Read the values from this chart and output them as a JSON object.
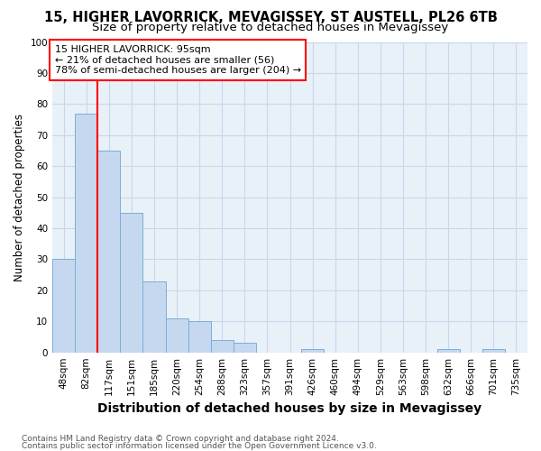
{
  "title": "15, HIGHER LAVORRICK, MEVAGISSEY, ST AUSTELL, PL26 6TB",
  "subtitle": "Size of property relative to detached houses in Mevagissey",
  "xlabel": "Distribution of detached houses by size in Mevagissey",
  "ylabel": "Number of detached properties",
  "footnote1": "Contains HM Land Registry data © Crown copyright and database right 2024.",
  "footnote2": "Contains public sector information licensed under the Open Government Licence v3.0.",
  "categories": [
    "48sqm",
    "82sqm",
    "117sqm",
    "151sqm",
    "185sqm",
    "220sqm",
    "254sqm",
    "288sqm",
    "323sqm",
    "357sqm",
    "391sqm",
    "426sqm",
    "460sqm",
    "494sqm",
    "529sqm",
    "563sqm",
    "598sqm",
    "632sqm",
    "666sqm",
    "701sqm",
    "735sqm"
  ],
  "values": [
    30,
    77,
    65,
    45,
    23,
    11,
    10,
    4,
    3,
    0,
    0,
    1,
    0,
    0,
    0,
    0,
    0,
    1,
    0,
    1,
    0
  ],
  "bar_color": "#c5d8f0",
  "bar_edge_color": "#7bafd4",
  "red_line_x": 1.5,
  "annotation_line1": "15 HIGHER LAVORRICK: 95sqm",
  "annotation_line2": "← 21% of detached houses are smaller (56)",
  "annotation_line3": "78% of semi-detached houses are larger (204) →",
  "annotation_box_color": "white",
  "annotation_box_edge_color": "red",
  "ylim": [
    0,
    100
  ],
  "yticks": [
    0,
    10,
    20,
    30,
    40,
    50,
    60,
    70,
    80,
    90,
    100
  ],
  "grid_color": "#c8d8ec",
  "background_color": "#ffffff",
  "plot_bg_color": "#e8f0f8",
  "title_fontsize": 10.5,
  "subtitle_fontsize": 9.5,
  "xlabel_fontsize": 10,
  "ylabel_fontsize": 8.5,
  "tick_fontsize": 7.5,
  "annot_fontsize": 8,
  "footnote_fontsize": 6.5
}
